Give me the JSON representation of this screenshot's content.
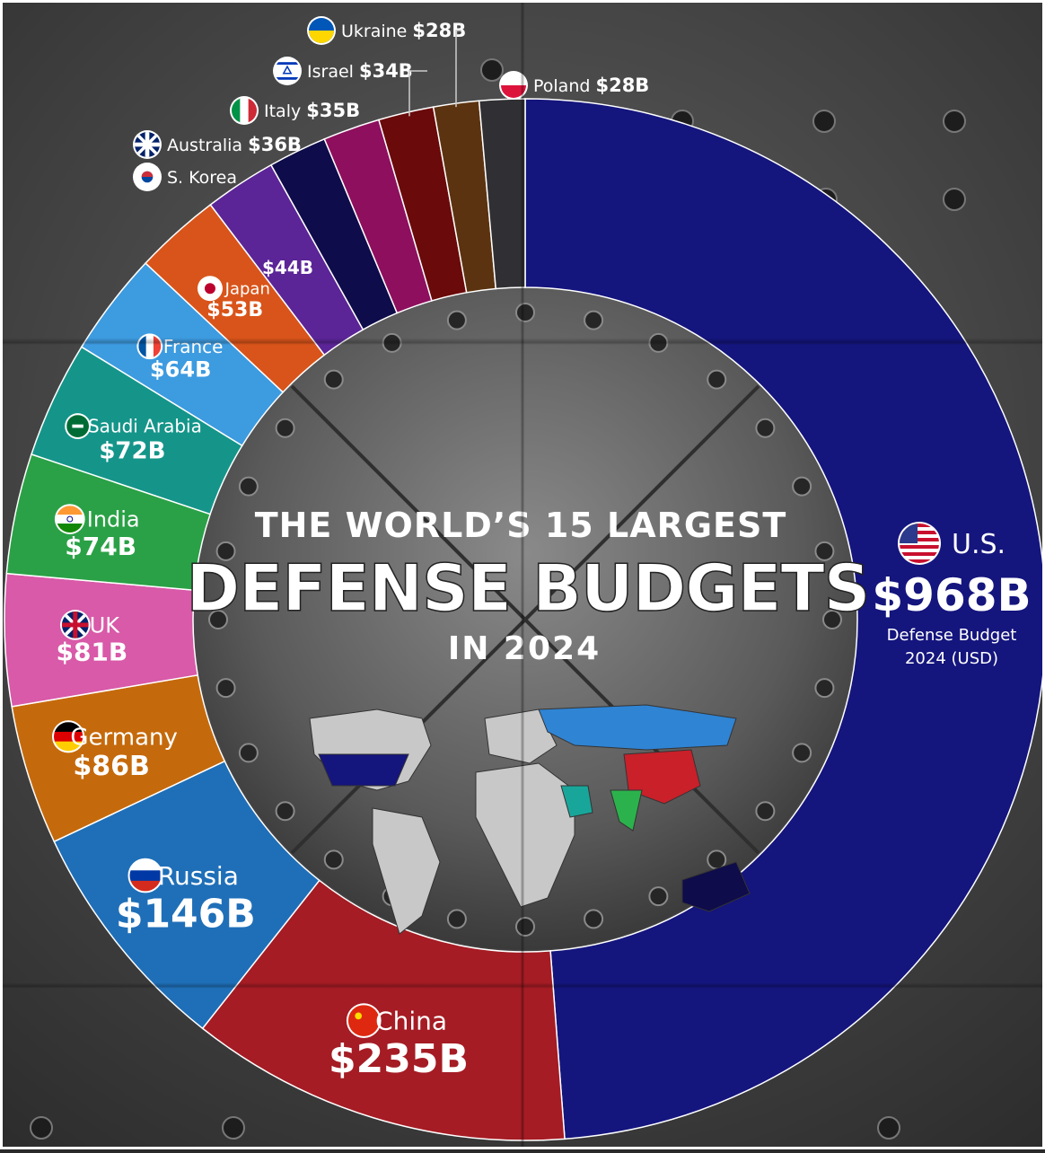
{
  "title": {
    "line1": "THE WORLD’S 15 LARGEST",
    "line2": "DEFENSE BUDGETS",
    "line3": "IN 2024"
  },
  "us_note": {
    "line1": "Defense Budget",
    "line2": "2024 (USD)"
  },
  "chart_data": {
    "type": "pie",
    "title": "THE WORLD’S 15 LARGEST DEFENSE BUDGETS IN 2024",
    "unit": "USD billions",
    "slices": [
      {
        "country": "U.S.",
        "label": "$968B",
        "value": 968,
        "color": "#14157d"
      },
      {
        "country": "China",
        "label": "$235B",
        "value": 235,
        "color": "#a51c24"
      },
      {
        "country": "Russia",
        "label": "$146B",
        "value": 146,
        "color": "#1f6fb8"
      },
      {
        "country": "Germany",
        "label": "$86B",
        "value": 86,
        "color": "#c56a0c"
      },
      {
        "country": "UK",
        "label": "$81B",
        "value": 81,
        "color": "#d85aa8"
      },
      {
        "country": "India",
        "label": "$74B",
        "value": 74,
        "color": "#2aa146"
      },
      {
        "country": "Saudi Arabia",
        "label": "$72B",
        "value": 72,
        "color": "#15958a"
      },
      {
        "country": "France",
        "label": "$64B",
        "value": 64,
        "color": "#3d9be0"
      },
      {
        "country": "Japan",
        "label": "$53B",
        "value": 53,
        "color": "#d9541a"
      },
      {
        "country": "S. Korea",
        "label": "$44B",
        "value": 44,
        "color": "#5b2597"
      },
      {
        "country": "Australia",
        "label": "$36B",
        "value": 36,
        "color": "#0e0c4a"
      },
      {
        "country": "Italy",
        "label": "$35B",
        "value": 35,
        "color": "#8e0f5e"
      },
      {
        "country": "Israel",
        "label": "$34B",
        "value": 34,
        "color": "#6a0a0a"
      },
      {
        "country": "Ukraine",
        "label": "$28B",
        "value": 28,
        "color": "#5c3310"
      },
      {
        "country": "Poland",
        "label": "$28B",
        "value": 28,
        "color": "#303034"
      }
    ]
  }
}
